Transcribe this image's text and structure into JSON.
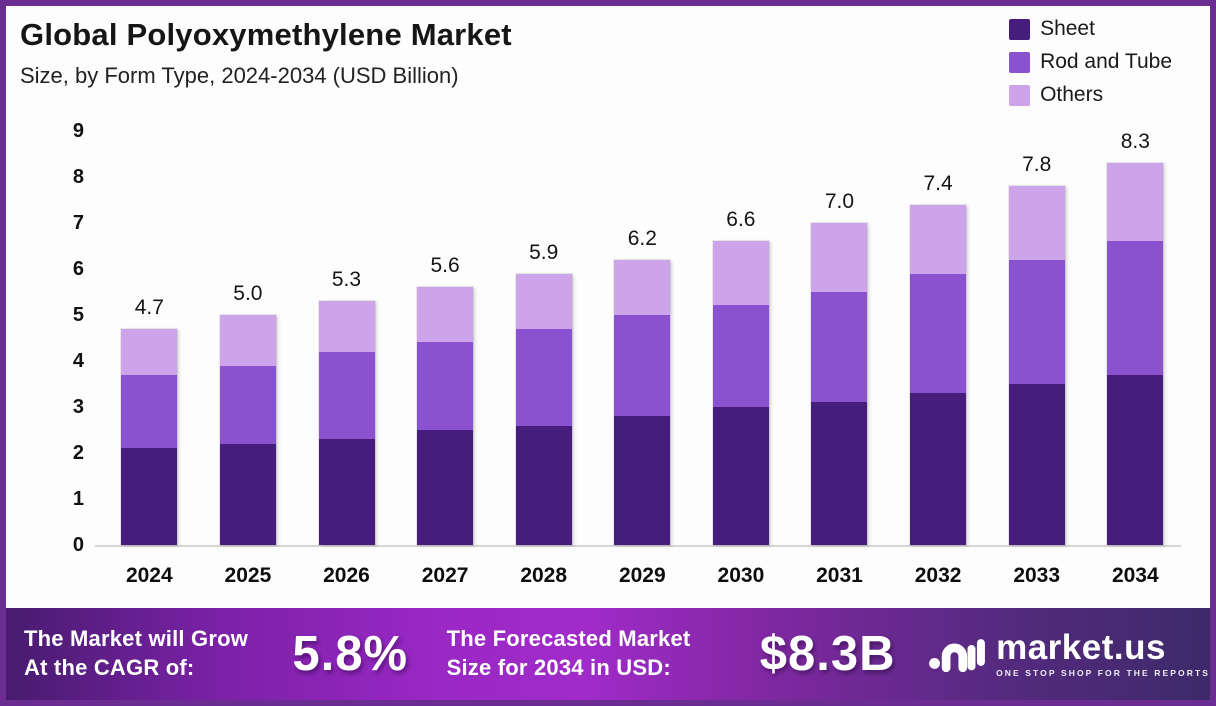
{
  "header": {
    "title": "Global Polyoxymethylene Market",
    "subtitle": "Size, by Form Type, 2024-2034 (USD Billion)"
  },
  "colors": {
    "sheet": "#461d7c",
    "rod_and_tube": "#8a52cf",
    "others": "#cda4e9",
    "frame_border": "#6b2d92",
    "axis_line": "#d6d6d6",
    "banner_bright": "#a02bc9",
    "banner_dark": "#3d2a69"
  },
  "chart_data": {
    "type": "bar",
    "stacked": true,
    "title": "Global Polyoxymethylene Market Size, by Form Type, 2024-2034 (USD Billion)",
    "categories": [
      "2024",
      "2025",
      "2026",
      "2027",
      "2028",
      "2029",
      "2030",
      "2031",
      "2032",
      "2033",
      "2034"
    ],
    "series": [
      {
        "name": "Sheet",
        "color": "#461d7c",
        "values": [
          2.1,
          2.2,
          2.3,
          2.5,
          2.6,
          2.8,
          3.0,
          3.1,
          3.3,
          3.5,
          3.7
        ]
      },
      {
        "name": "Rod and Tube",
        "color": "#8a52cf",
        "values": [
          1.6,
          1.7,
          1.9,
          1.9,
          2.1,
          2.2,
          2.2,
          2.4,
          2.6,
          2.7,
          2.9
        ]
      },
      {
        "name": "Others",
        "color": "#cda4e9",
        "values": [
          1.0,
          1.1,
          1.1,
          1.2,
          1.2,
          1.2,
          1.4,
          1.5,
          1.5,
          1.6,
          1.7
        ]
      }
    ],
    "total_labels": [
      "4.7",
      "5.0",
      "5.3",
      "5.6",
      "5.9",
      "6.2",
      "6.6",
      "7.0",
      "7.4",
      "7.8",
      "8.3"
    ],
    "xlabel": "",
    "ylabel": "USD Billion",
    "ylim": [
      0,
      9
    ],
    "yticks": [
      0,
      1,
      2,
      3,
      4,
      5,
      6,
      7,
      8,
      9
    ],
    "grid": false,
    "legend_position": "top-right"
  },
  "footer": {
    "cagr_label_line1": "The Market will Grow",
    "cagr_label_line2": "At the CAGR of:",
    "cagr_value": "5.8%",
    "forecast_label_line1": "The Forecasted Market",
    "forecast_label_line2": "Size for 2034 in USD:",
    "forecast_value": "$8.3B",
    "logo_text": "market.us",
    "logo_tagline": "ONE STOP SHOP FOR THE REPORTS"
  }
}
